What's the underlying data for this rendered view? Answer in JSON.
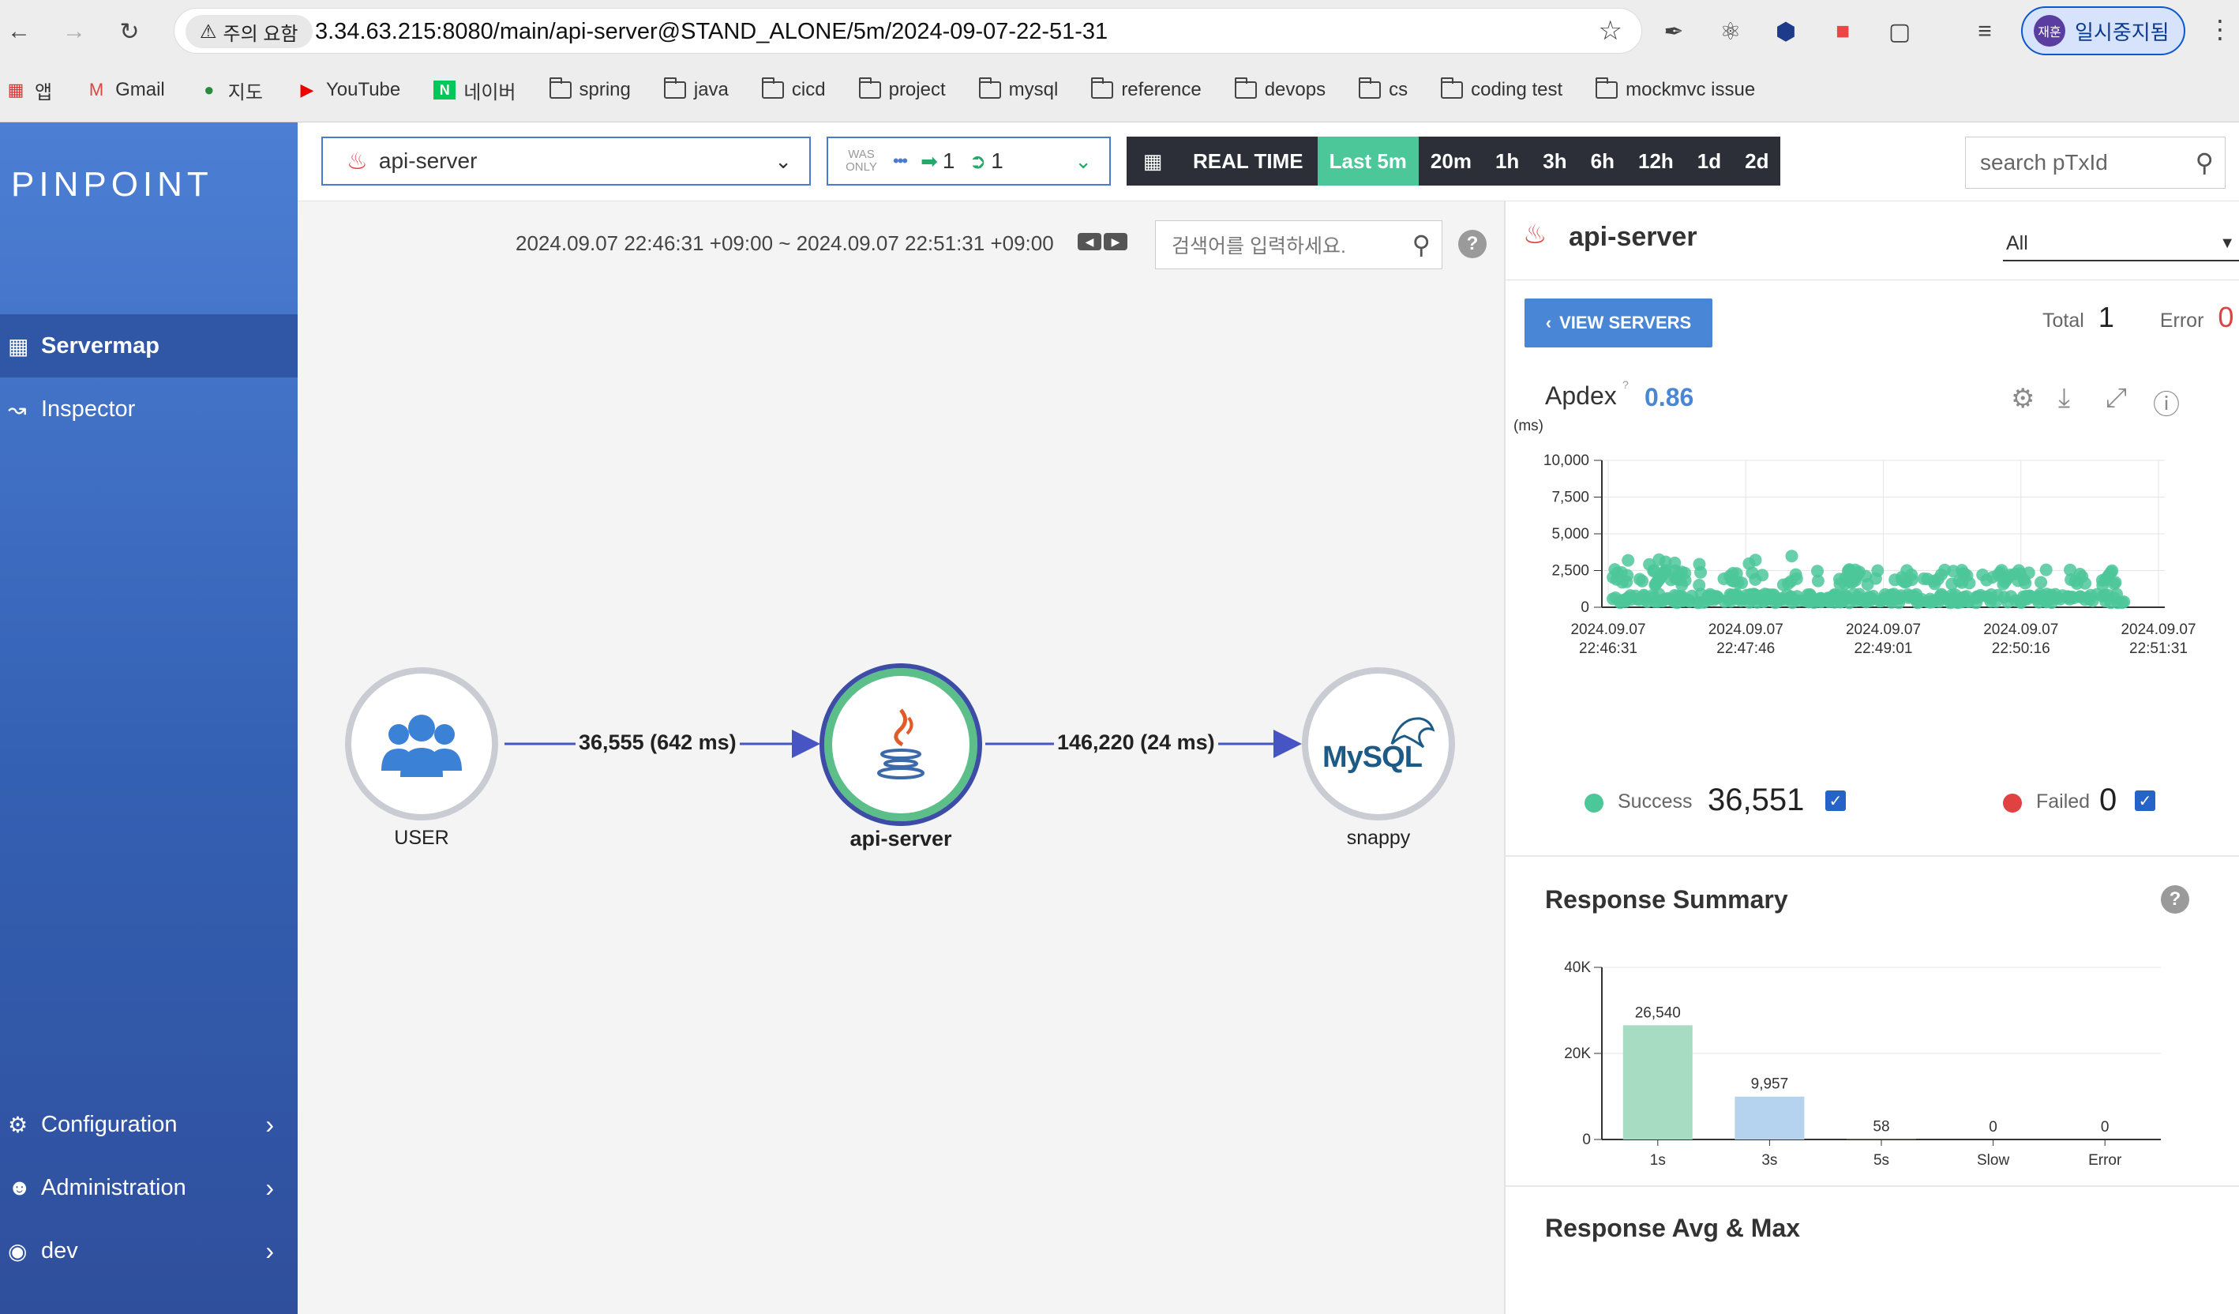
{
  "browser": {
    "warning_chip": "주의 요함",
    "url": "3.34.63.215:8080/main/api-server@STAND_ALONE/5m/2024-09-07-22-51-31",
    "profile_avatar": "재훈",
    "profile_label": "일시중지됨",
    "bookmarks": [
      {
        "label": "앱",
        "icon": "apps-grid-icon"
      },
      {
        "label": "Gmail",
        "icon": "gmail-icon"
      },
      {
        "label": "지도",
        "icon": "maps-icon"
      },
      {
        "label": "YouTube",
        "icon": "youtube-icon"
      },
      {
        "label": "네이버",
        "icon": "naver-icon"
      },
      {
        "label": "spring",
        "icon": "folder-icon"
      },
      {
        "label": "java",
        "icon": "folder-icon"
      },
      {
        "label": "cicd",
        "icon": "folder-icon"
      },
      {
        "label": "project",
        "icon": "folder-icon"
      },
      {
        "label": "mysql",
        "icon": "folder-icon"
      },
      {
        "label": "reference",
        "icon": "folder-icon"
      },
      {
        "label": "devops",
        "icon": "folder-icon"
      },
      {
        "label": "cs",
        "icon": "folder-icon"
      },
      {
        "label": "coding test",
        "icon": "folder-icon"
      },
      {
        "label": "mockmvc issue",
        "icon": "folder-icon"
      }
    ]
  },
  "sidebar": {
    "logo": "PINPOINT",
    "items": [
      {
        "label": "Servermap",
        "active": true
      },
      {
        "label": "Inspector"
      },
      {
        "label": "Configuration"
      },
      {
        "label": "Administration"
      },
      {
        "label": "dev"
      }
    ]
  },
  "appbar": {
    "application": "api-server",
    "was_label": "WAS ONLY",
    "inbound_count": "1",
    "outbound_count": "1",
    "realtime_label": "REAL TIME",
    "ranges": [
      "Last 5m",
      "20m",
      "1h",
      "3h",
      "6h",
      "12h",
      "1d",
      "2d"
    ],
    "selected_range": "Last 5m",
    "search_placeholder": "search pTxId"
  },
  "servermap": {
    "time_range": "2024.09.07 22:46:31 +09:00 ~ 2024.09.07 22:51:31 +09:00",
    "search_placeholder": "검색어를 입력하세요.",
    "nodes": {
      "user": "USER",
      "api": "api-server",
      "db": "snappy",
      "db_logo": "MySQL"
    },
    "edges": {
      "user_to_api": "36,555 (642 ms)",
      "api_to_db": "146,220 (24 ms)"
    }
  },
  "panel": {
    "title": "api-server",
    "agent_filter": "All",
    "view_servers_label": "VIEW SERVERS",
    "total_label": "Total",
    "total_value": "1",
    "error_label": "Error",
    "error_value": "0",
    "apdex_label": "Apdex",
    "apdex_value": "0.86",
    "success_label": "Success",
    "success_value": "36,551",
    "failed_label": "Failed",
    "failed_value": "0",
    "response_summary_title": "Response Summary",
    "response_avg_title": "Response Avg & Max"
  },
  "colors": {
    "success": "#4cc79a",
    "failed": "#e04141",
    "accent": "#4a86d6",
    "sidebar_top": "#4c7fd4"
  },
  "chart_data": [
    {
      "type": "scatter",
      "title": "Apdex",
      "ylabel": "(ms)",
      "ylim": [
        0,
        10000
      ],
      "yticks": [
        0,
        2500,
        5000,
        7500,
        10000
      ],
      "ytick_labels": [
        "0",
        "2,500",
        "5,000",
        "7,500",
        "10,000"
      ],
      "x_tick_labels": [
        [
          "2024.09.07",
          "22:46:31"
        ],
        [
          "2024.09.07",
          "22:47:46"
        ],
        [
          "2024.09.07",
          "22:49:01"
        ],
        [
          "2024.09.07",
          "22:50:16"
        ],
        [
          "2024.09.07",
          "22:51:31"
        ]
      ],
      "series": [
        {
          "name": "Success",
          "count": 36551,
          "bands_ms": [
            [
              300,
              900
            ],
            [
              1500,
              2600
            ],
            [
              2800,
              3500
            ]
          ]
        },
        {
          "name": "Failed",
          "count": 0
        }
      ]
    },
    {
      "type": "bar",
      "title": "Response Summary",
      "categories": [
        "1s",
        "3s",
        "5s",
        "Slow",
        "Error"
      ],
      "values": [
        26540,
        9957,
        58,
        0,
        0
      ],
      "value_labels": [
        "26,540",
        "9,957",
        "58",
        "0",
        "0"
      ],
      "ylim": [
        0,
        40000
      ],
      "ytick_labels": [
        "0",
        "20K",
        "40K"
      ],
      "bar_colors": [
        "#a8dcc2",
        "#b5d3ee",
        "#e8d9a0",
        "#f0b8b8",
        "#f0b8b8"
      ]
    }
  ]
}
